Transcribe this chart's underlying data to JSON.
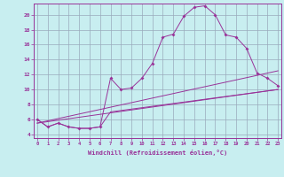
{
  "xlabel": "Windchill (Refroidissement éolien,°C)",
  "bg_color": "#c8eef0",
  "line_color": "#993399",
  "grid_color": "#99aabb",
  "x_ticks": [
    0,
    1,
    2,
    3,
    4,
    5,
    6,
    7,
    8,
    9,
    10,
    11,
    12,
    13,
    14,
    15,
    16,
    17,
    18,
    19,
    20,
    21,
    22,
    23
  ],
  "y_ticks": [
    4,
    6,
    8,
    10,
    12,
    14,
    16,
    18,
    20
  ],
  "xlim": [
    -0.3,
    23.3
  ],
  "ylim": [
    3.5,
    21.5
  ],
  "curve1_x": [
    0,
    1,
    2,
    3,
    4,
    5,
    6,
    7,
    8,
    9,
    10,
    11,
    12,
    13,
    14,
    15,
    16,
    17,
    18,
    19,
    20,
    21,
    22,
    23
  ],
  "curve1_y": [
    6.0,
    5.0,
    5.5,
    5.0,
    4.8,
    4.8,
    5.0,
    11.5,
    10.0,
    10.2,
    11.5,
    13.5,
    17.0,
    17.4,
    19.8,
    21.0,
    21.2,
    20.0,
    17.3,
    17.0,
    15.5,
    12.2,
    11.5,
    10.5
  ],
  "curve2_x": [
    0,
    1,
    2,
    3,
    4,
    5,
    6,
    7,
    23
  ],
  "curve2_y": [
    6.0,
    5.0,
    5.5,
    5.0,
    4.8,
    4.8,
    5.0,
    7.0,
    10.0
  ],
  "line1_x": [
    0,
    23
  ],
  "line1_y": [
    5.5,
    10.0
  ],
  "line2_x": [
    0,
    23
  ],
  "line2_y": [
    5.5,
    12.5
  ]
}
